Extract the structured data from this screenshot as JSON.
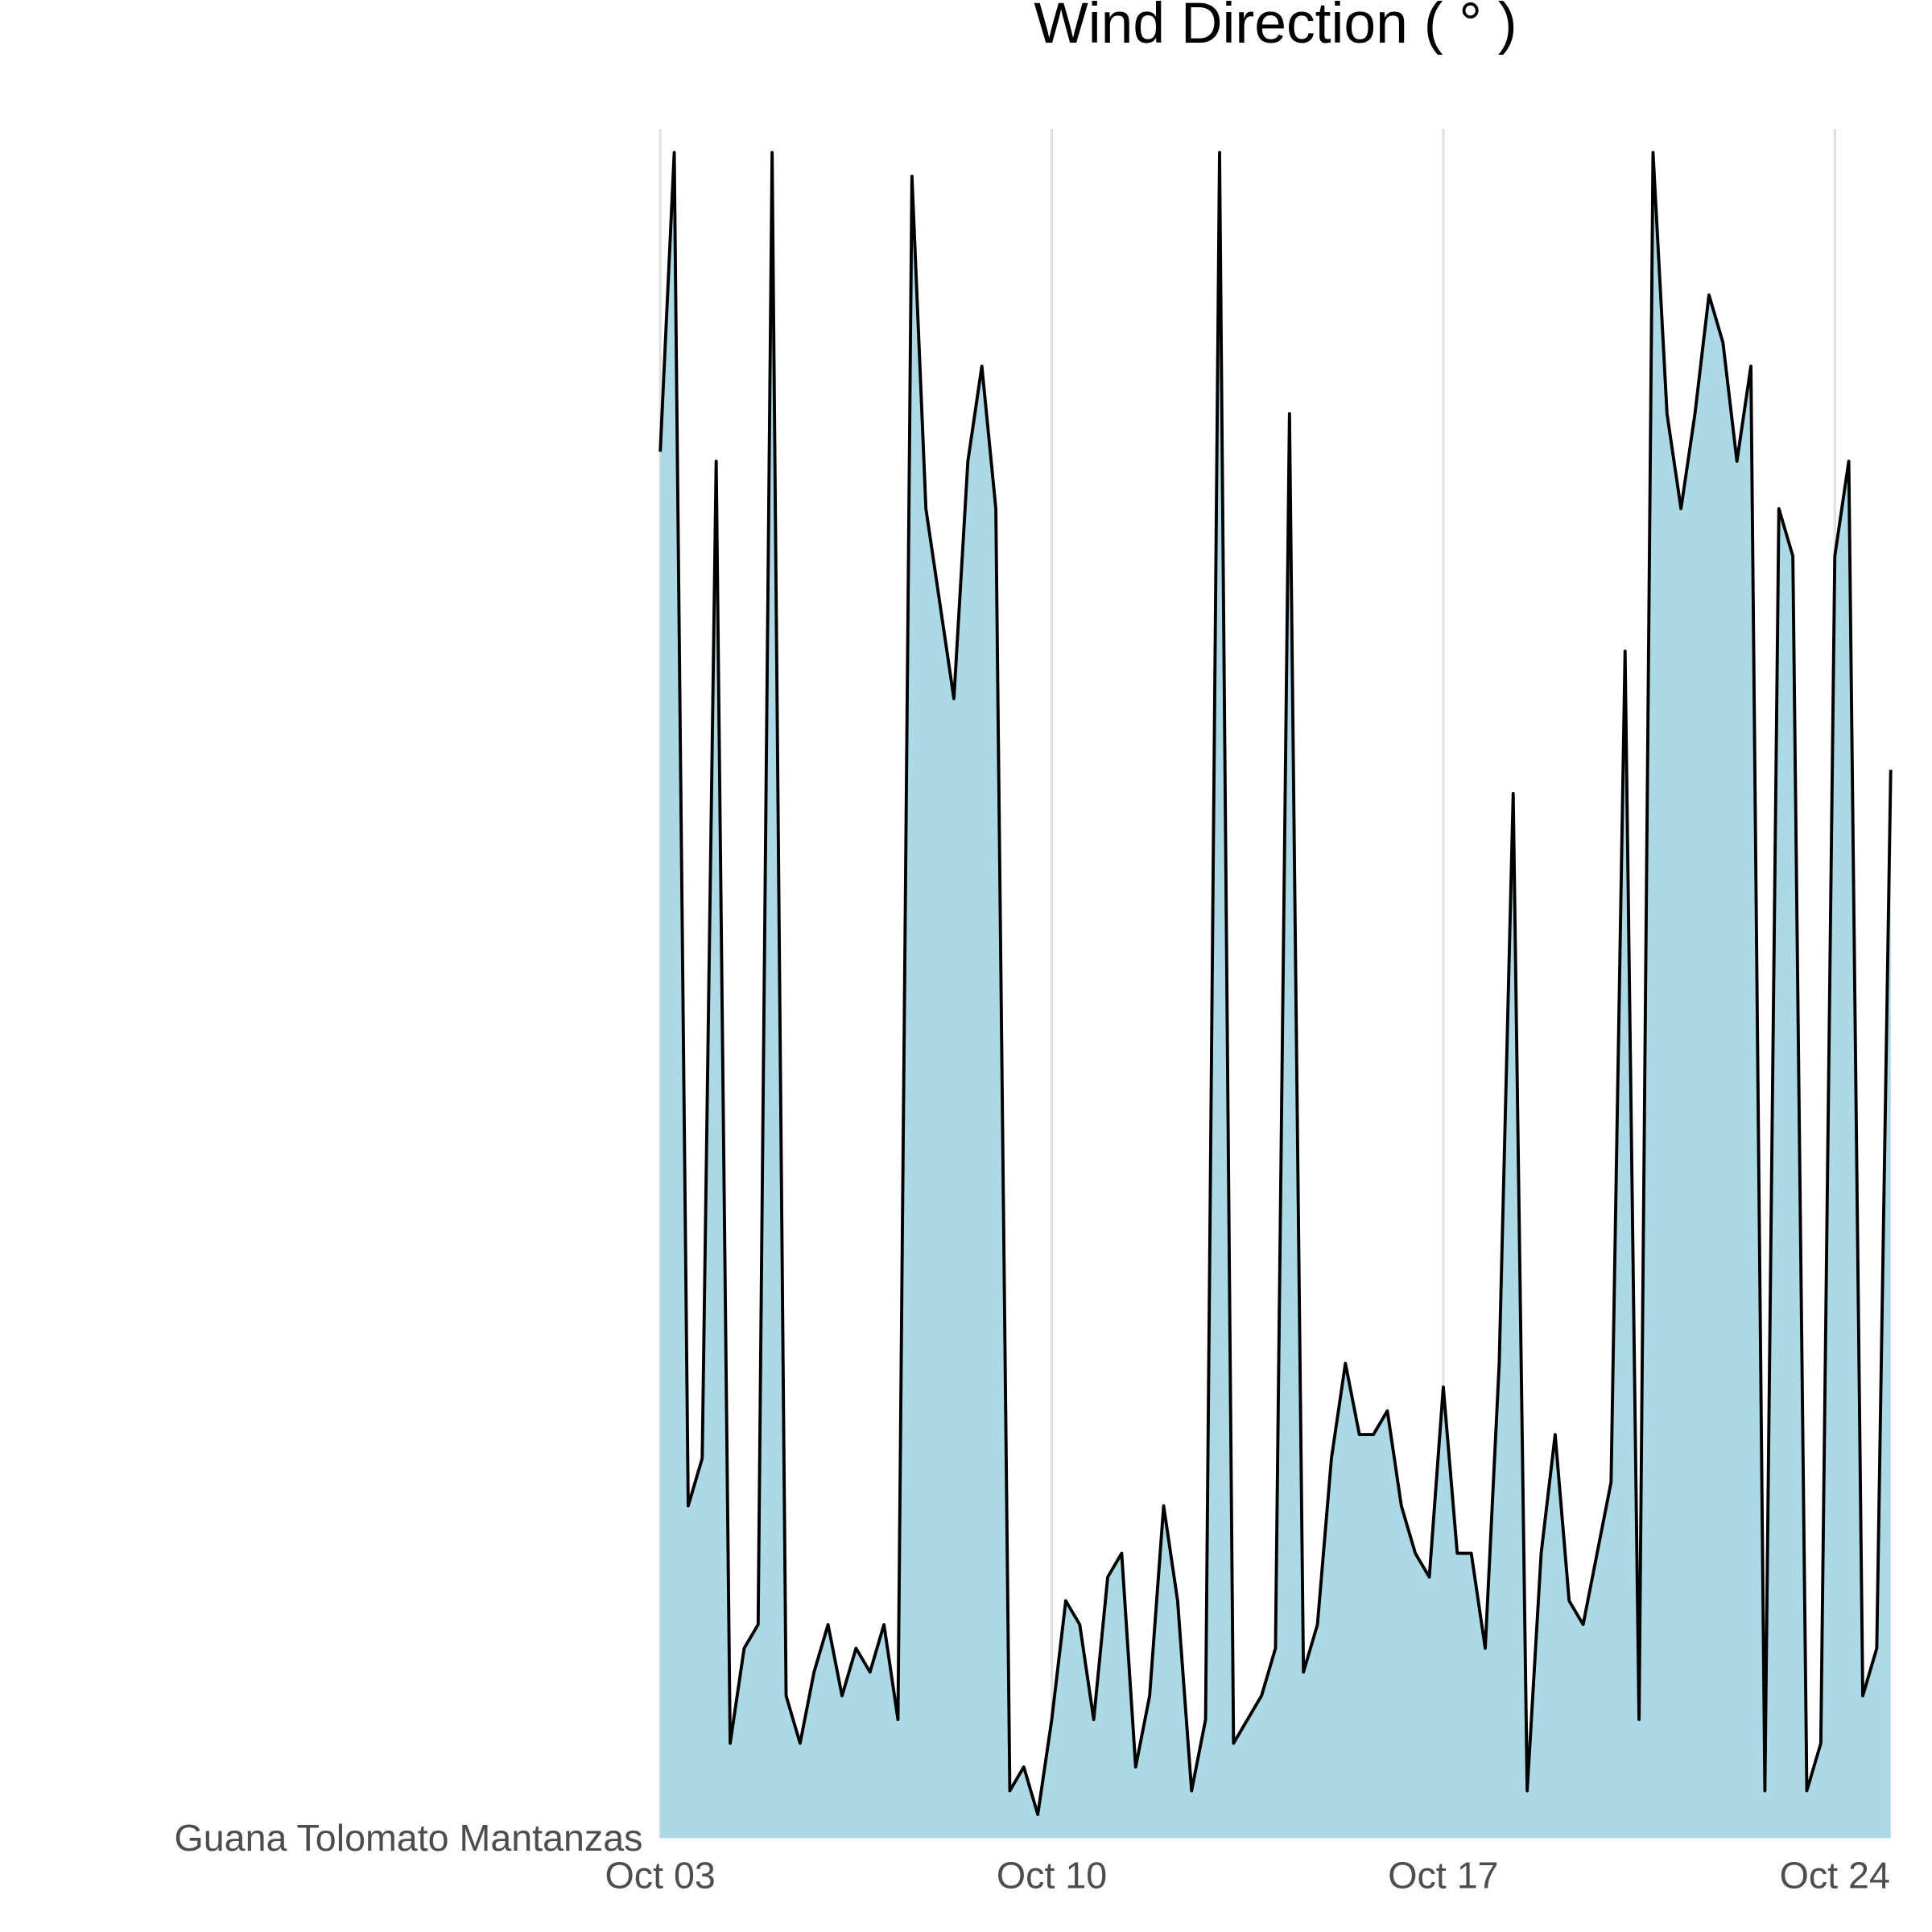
{
  "chart_data": {
    "type": "area",
    "title": "Wind Direction ( ° )",
    "x": [
      0,
      0.25,
      0.5,
      0.75,
      1,
      1.25,
      1.5,
      1.75,
      2,
      2.25,
      2.5,
      2.75,
      3,
      3.25,
      3.5,
      3.75,
      4,
      4.25,
      4.5,
      4.75,
      5,
      5.25,
      5.5,
      5.75,
      6,
      6.25,
      6.5,
      6.75,
      7,
      7.25,
      7.5,
      7.75,
      8,
      8.25,
      8.5,
      8.75,
      9,
      9.25,
      9.5,
      9.75,
      10,
      10.25,
      10.5,
      10.75,
      11,
      11.25,
      11.5,
      11.75,
      12,
      12.25,
      12.5,
      12.75,
      13,
      13.25,
      13.5,
      13.75,
      14,
      14.25,
      14.5,
      14.75,
      15,
      15.25,
      15.5,
      15.75,
      16,
      16.25,
      16.5,
      16.75,
      17,
      17.25,
      17.5,
      17.75,
      18,
      18.25,
      18.5,
      18.75,
      19,
      19.25,
      19.5,
      19.75,
      20,
      20.25,
      20.5,
      20.75,
      21,
      21.25,
      21.5,
      21.75,
      22
    ],
    "series": [
      {
        "name": "Guana Tolomato Mantanzas",
        "color": "#add8e6",
        "line_color": "#000000",
        "values": [
          292,
          355,
          70,
          80,
          290,
          20,
          40,
          45,
          355,
          30,
          20,
          35,
          45,
          30,
          40,
          35,
          45,
          25,
          350,
          280,
          260,
          240,
          290,
          310,
          280,
          10,
          15,
          5,
          25,
          50,
          45,
          25,
          55,
          60,
          15,
          30,
          70,
          50,
          10,
          25,
          355,
          20,
          25,
          30,
          40,
          300,
          35,
          45,
          80,
          100,
          85,
          85,
          90,
          70,
          60,
          55,
          95,
          60,
          60,
          40,
          100,
          220,
          10,
          60,
          85,
          50,
          45,
          60,
          75,
          250,
          25,
          355,
          300,
          280,
          300,
          325,
          315,
          290,
          310,
          10,
          280,
          270,
          10,
          20,
          270,
          290,
          30,
          40,
          225
        ]
      }
    ],
    "xlim": [
      0,
      22
    ],
    "xticks": [
      {
        "value": 0,
        "label": "Oct 03"
      },
      {
        "value": 7,
        "label": "Oct 10"
      },
      {
        "value": 14,
        "label": "Oct 17"
      },
      {
        "value": 21,
        "label": "Oct 24"
      }
    ],
    "ylim": [
      0,
      360
    ],
    "grid": true
  }
}
